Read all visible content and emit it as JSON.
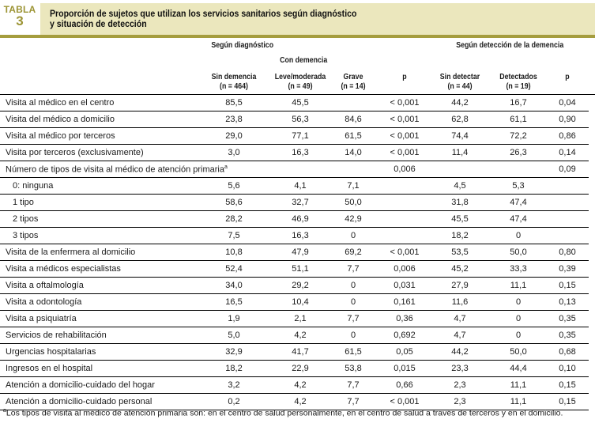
{
  "table_label": "TABLA",
  "table_number": "3",
  "title_line1": "Proporción de sujetos que utilizan los servicios sanitarios según diagnóstico",
  "title_line2": "y situación de detección",
  "headers": {
    "group_diagnosis": "Según diagnóstico",
    "group_detection": "Según detección de la demencia",
    "with_dementia": "Con demencia",
    "columns": [
      {
        "label": "Sin demencia",
        "n": "(n = 464)"
      },
      {
        "label": "Leve/moderada",
        "n": "(n = 49)"
      },
      {
        "label": "Grave",
        "n": "(n = 14)"
      },
      {
        "label": "p",
        "n": ""
      },
      {
        "label": "Sin detectar",
        "n": "(n = 44)"
      },
      {
        "label": "Detectados",
        "n": "(n = 19)"
      },
      {
        "label": "p",
        "n": ""
      }
    ]
  },
  "rows": [
    {
      "label": "Visita al médico en el centro",
      "values": [
        "85,5",
        "45,5",
        "",
        "< 0,001",
        "44,2",
        "16,7",
        "0,04"
      ]
    },
    {
      "label": "Visita del médico a domicilio",
      "values": [
        "23,8",
        "56,3",
        "84,6",
        "< 0,001",
        "62,8",
        "61,1",
        "0,90"
      ]
    },
    {
      "label": "Visita al médico por terceros",
      "values": [
        "29,0",
        "77,1",
        "61,5",
        "< 0,001",
        "74,4",
        "72,2",
        "0,86"
      ]
    },
    {
      "label": "Visita por terceros (exclusivamente)",
      "values": [
        "3,0",
        "16,3",
        "14,0",
        "< 0,001",
        "11,4",
        "26,3",
        "0,14"
      ]
    },
    {
      "label": "Número de tipos de visita al médico de atención primaria",
      "sup": "a",
      "values": [
        "",
        "",
        "",
        "0,006",
        "",
        "",
        "0,09"
      ]
    },
    {
      "label": "0: ninguna",
      "sub": true,
      "values": [
        "5,6",
        "4,1",
        "7,1",
        "",
        "4,5",
        "5,3",
        ""
      ]
    },
    {
      "label": "1 tipo",
      "sub": true,
      "values": [
        "58,6",
        "32,7",
        "50,0",
        "",
        "31,8",
        "47,4",
        ""
      ]
    },
    {
      "label": "2 tipos",
      "sub": true,
      "values": [
        "28,2",
        "46,9",
        "42,9",
        "",
        "45,5",
        "47,4",
        ""
      ]
    },
    {
      "label": "3 tipos",
      "sub": true,
      "values": [
        "7,5",
        "16,3",
        "0",
        "",
        "18,2",
        "0",
        ""
      ]
    },
    {
      "label": "Visita de la enfermera al domicilio",
      "values": [
        "10,8",
        "47,9",
        "69,2",
        "< 0,001",
        "53,5",
        "50,0",
        "0,80"
      ]
    },
    {
      "label": "Visita a médicos especialistas",
      "values": [
        "52,4",
        "51,1",
        "7,7",
        "0,006",
        "45,2",
        "33,3",
        "0,39"
      ]
    },
    {
      "label": "Visita a oftalmología",
      "values": [
        "34,0",
        "29,2",
        "0",
        "0,031",
        "27,9",
        "11,1",
        "0,15"
      ]
    },
    {
      "label": "Visita a odontología",
      "values": [
        "16,5",
        "10,4",
        "0",
        "0,161",
        "11,6",
        "0",
        "0,13"
      ]
    },
    {
      "label": "Visita a psiquiatría",
      "values": [
        "1,9",
        "2,1",
        "7,7",
        "0,36",
        "4,7",
        "0",
        "0,35"
      ]
    },
    {
      "label": "Servicios de rehabilitación",
      "values": [
        "5,0",
        "4,2",
        "0",
        "0,692",
        "4,7",
        "0",
        "0,35"
      ]
    },
    {
      "label": "Urgencias hospitalarias",
      "values": [
        "32,9",
        "41,7",
        "61,5",
        "0,05",
        "44,2",
        "50,0",
        "0,68"
      ]
    },
    {
      "label": "Ingresos en el hospital",
      "values": [
        "18,2",
        "22,9",
        "53,8",
        "0,015",
        "23,3",
        "44,4",
        "0,10"
      ]
    },
    {
      "label": "Atención a domicilio-cuidado del hogar",
      "values": [
        "3,2",
        "4,2",
        "7,7",
        "0,66",
        "2,3",
        "11,1",
        "0,15"
      ]
    },
    {
      "label": "Atención a domicilio-cuidado personal",
      "values": [
        "0,2",
        "4,2",
        "7,7",
        "< 0,001",
        "2,3",
        "11,1",
        "0,15"
      ]
    }
  ],
  "footnote_mark": "a",
  "footnote": "Los tipos de visita al médico de atención primaria son: en el centro de salud personalmente, en el centro de salud a través de terceros y en el domicilio.",
  "colors": {
    "accent": "#a59d3e",
    "title_band": "#ebe7bd"
  }
}
